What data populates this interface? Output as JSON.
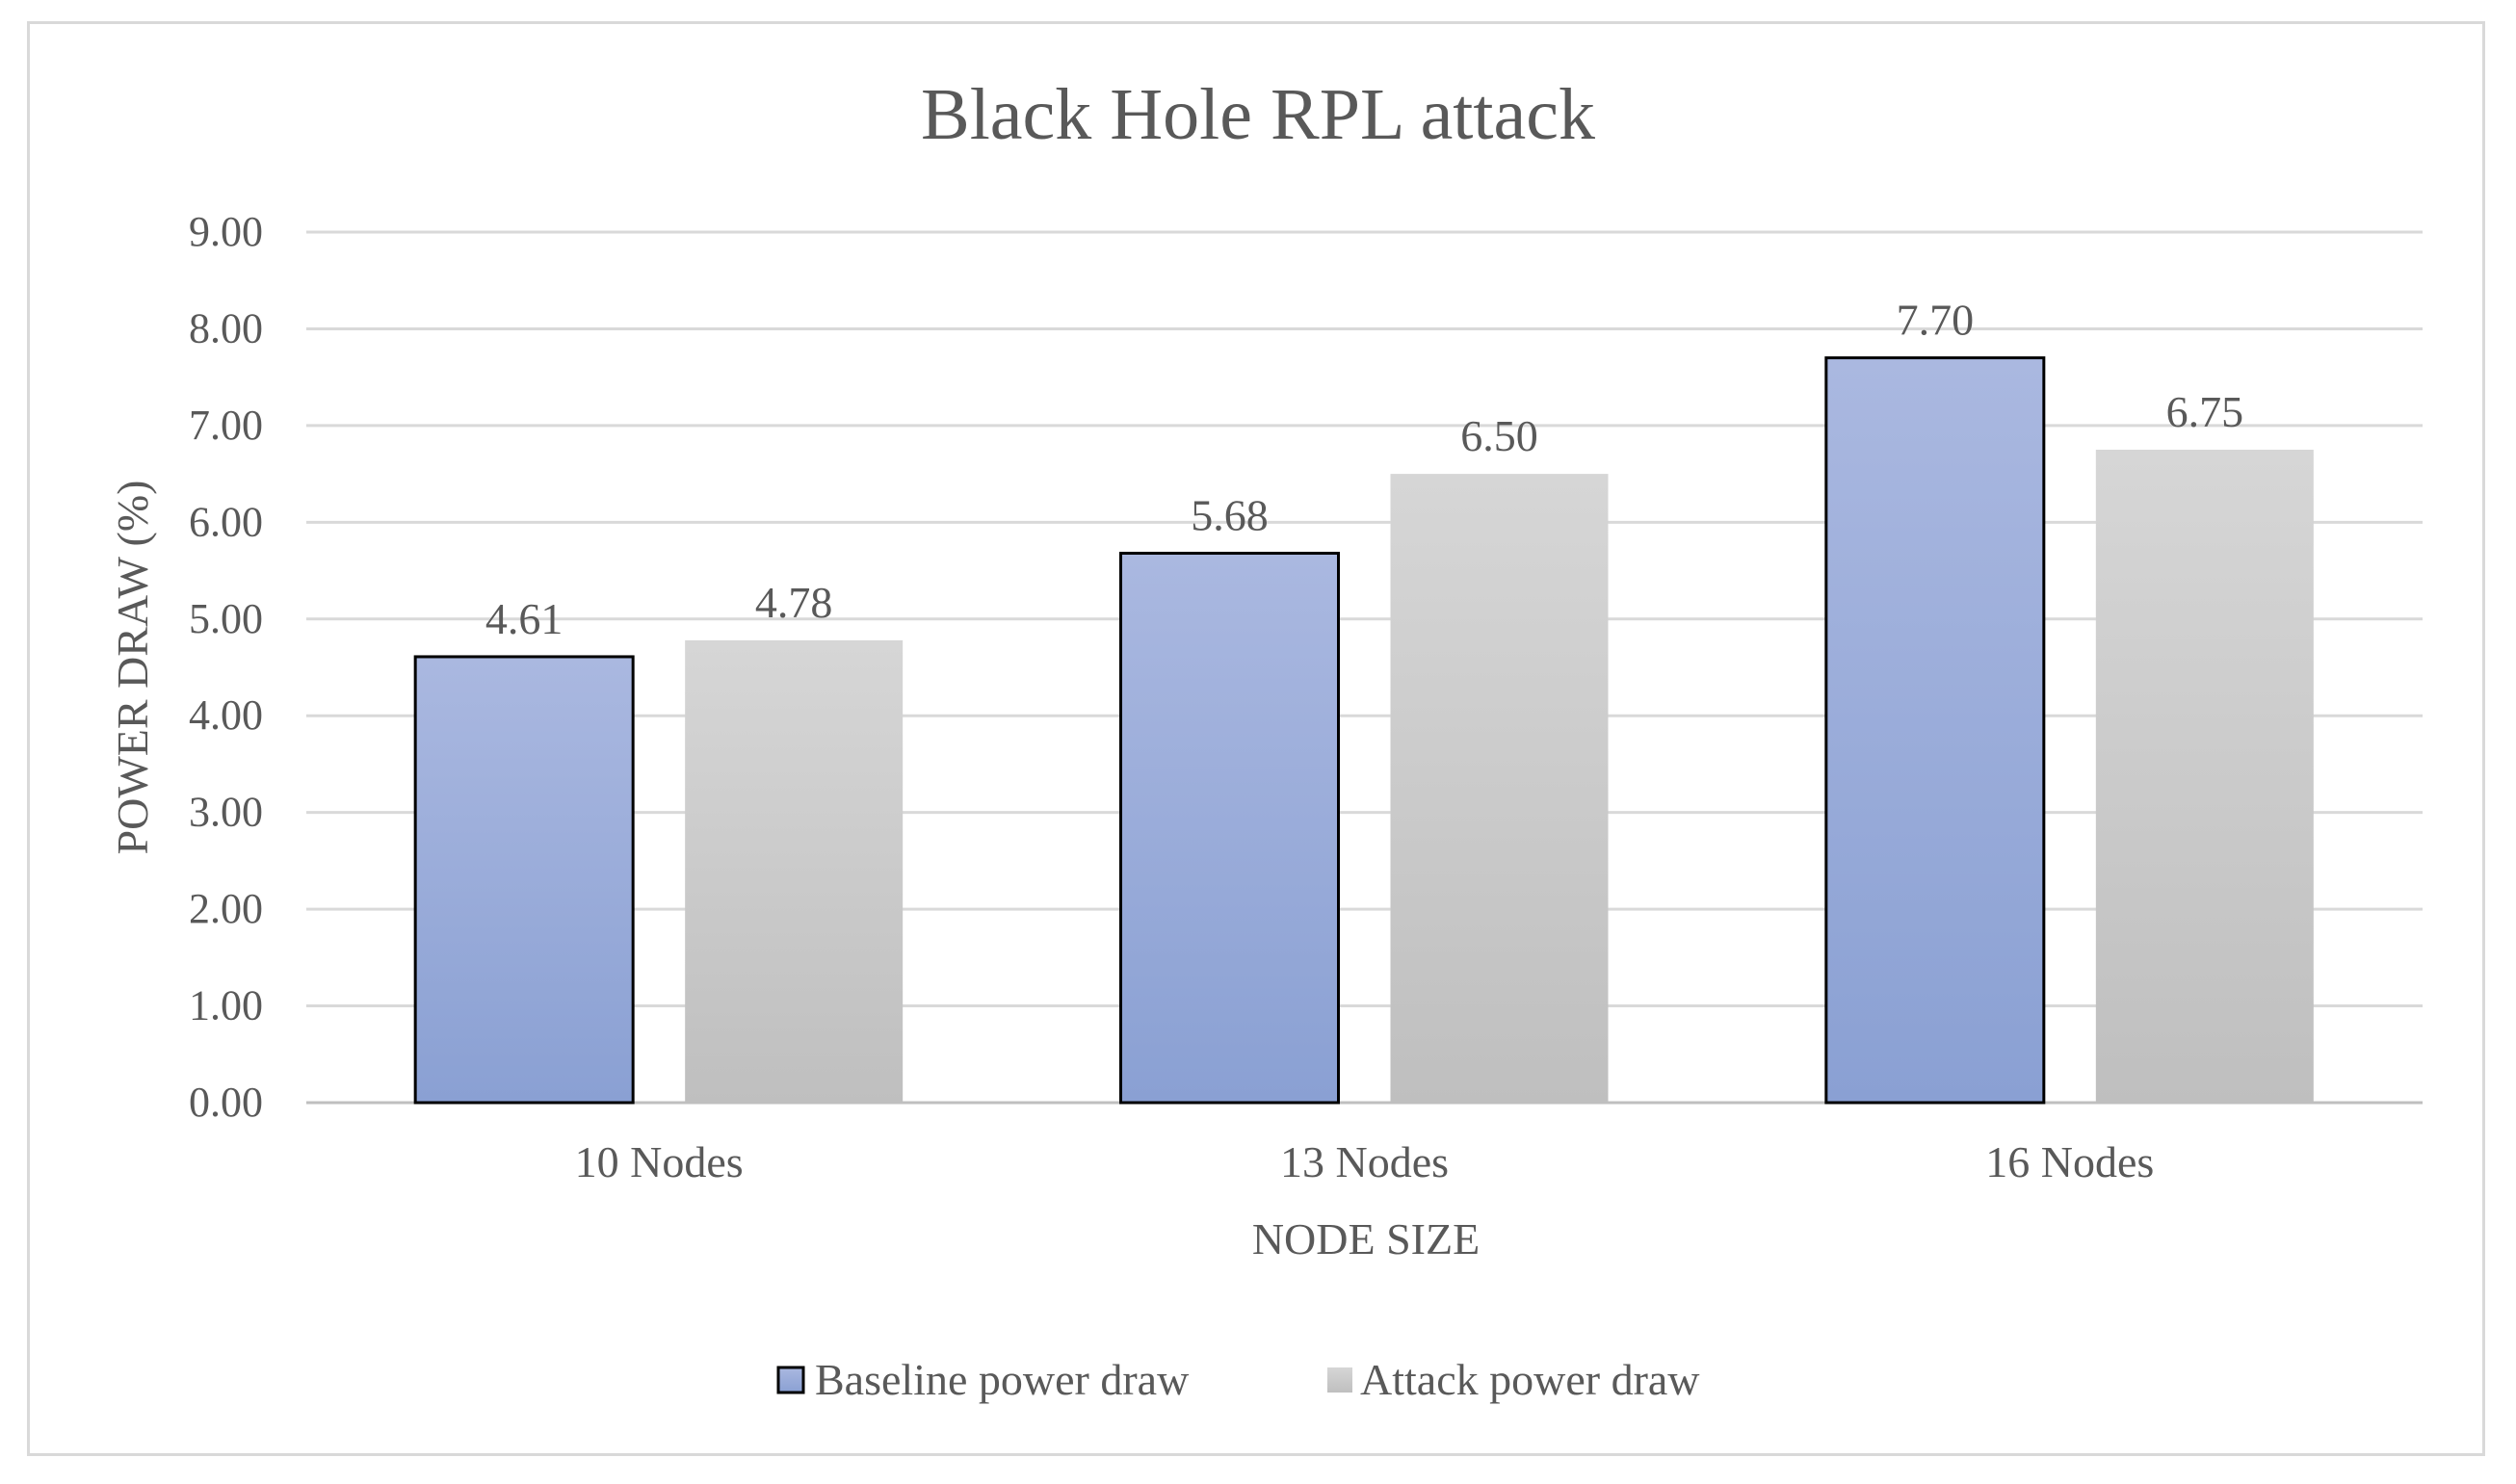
{
  "chart_data": {
    "type": "bar",
    "title": "Black Hole RPL attack",
    "xlabel": "NODE SIZE",
    "ylabel": "POWER DRAW (%)",
    "categories": [
      "10 Nodes",
      "13 Nodes",
      "16 Nodes"
    ],
    "series": [
      {
        "name": "Baseline power draw",
        "values": [
          4.61,
          5.68,
          7.7
        ],
        "labels": [
          "4.61",
          "5.68",
          "7.70"
        ],
        "color_top": "#aab8e0",
        "color_bottom": "#8aa0d3",
        "outline": "#000000"
      },
      {
        "name": "Attack power draw",
        "values": [
          4.78,
          6.5,
          6.75
        ],
        "labels": [
          "4.78",
          "6.50",
          "6.75"
        ],
        "color_top": "#d6d6d6",
        "color_bottom": "#bfbfbf",
        "outline": "none"
      }
    ],
    "ylim": [
      0,
      9
    ],
    "yticks": [
      "0.00",
      "1.00",
      "2.00",
      "3.00",
      "4.00",
      "5.00",
      "6.00",
      "7.00",
      "8.00",
      "9.00"
    ],
    "grid": true,
    "legend_position": "bottom"
  }
}
